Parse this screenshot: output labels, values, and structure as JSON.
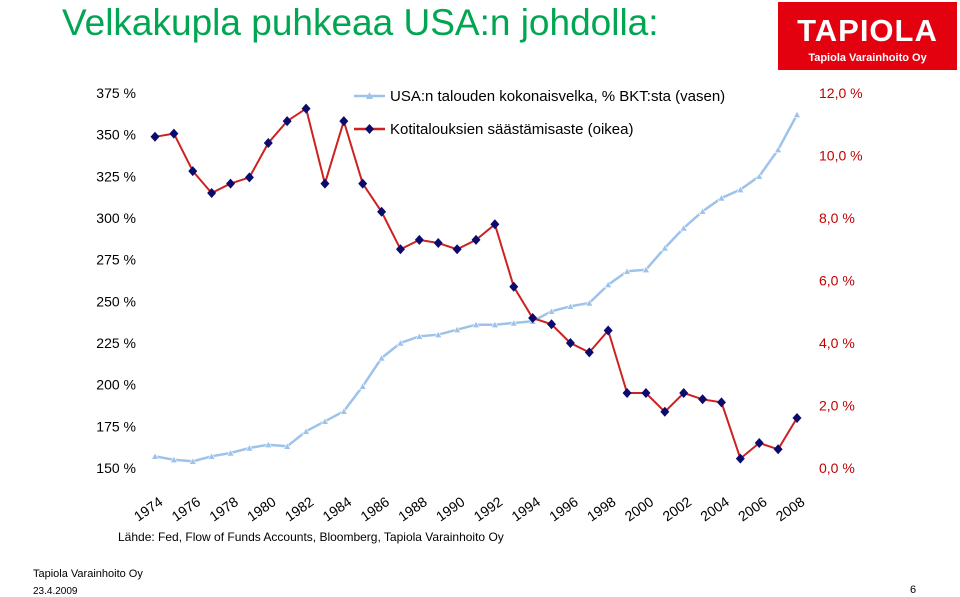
{
  "page": {
    "title": "Velkakupla puhkeaa USA:n johdolla:",
    "source": "Lähde: Fed, Flow of Funds Accounts, Bloomberg, Tapiola Varainhoito Oy",
    "footer_company": "Tapiola Varainhoito Oy",
    "footer_date": "23.4.2009",
    "page_number": "6"
  },
  "logo": {
    "word": "TAPIOLA",
    "subtitle": "Tapiola Varainhoito Oy",
    "background": "#e3000f"
  },
  "chart_data": {
    "type": "line",
    "title": "",
    "xlabel": "",
    "x_tick_labels": [
      "1974",
      "1976",
      "1978",
      "1980",
      "1982",
      "1984",
      "1986",
      "1988",
      "1990",
      "1992",
      "1994",
      "1996",
      "1998",
      "2000",
      "2002",
      "2004",
      "2006",
      "2008"
    ],
    "x": [
      1974,
      1975,
      1976,
      1977,
      1978,
      1979,
      1980,
      1981,
      1982,
      1983,
      1984,
      1985,
      1986,
      1987,
      1988,
      1989,
      1990,
      1991,
      1992,
      1993,
      1994,
      1995,
      1996,
      1997,
      1998,
      1999,
      2000,
      2001,
      2002,
      2003,
      2004,
      2005,
      2006,
      2007,
      2008
    ],
    "x_range": [
      1974,
      2008
    ],
    "left_axis": {
      "range": [
        150,
        375
      ],
      "tick_values": [
        150,
        175,
        200,
        225,
        250,
        275,
        300,
        325,
        350,
        375
      ],
      "tick_labels": [
        "150 %",
        "175 %",
        "200 %",
        "225 %",
        "250 %",
        "275 %",
        "300 %",
        "325 %",
        "350 %",
        "375 %"
      ]
    },
    "right_axis": {
      "range": [
        0,
        12
      ],
      "tick_values": [
        0,
        2,
        4,
        6,
        8,
        10,
        12
      ],
      "tick_labels": [
        "0,0 %",
        "2,0 %",
        "4,0 %",
        "6,0 %",
        "8,0 %",
        "10,0 %",
        "12,0 %"
      ],
      "label_color": "#c00000"
    },
    "grid": false,
    "legend_position": "top",
    "series": [
      {
        "name": "USA:n talouden kokonaisvelka, % BKT:sta (vasen)",
        "axis": "left",
        "color": "#9ec3ea",
        "marker": "triangle",
        "values": [
          157,
          155,
          154,
          157,
          159,
          162,
          164,
          163,
          172,
          178,
          184,
          199,
          216,
          225,
          229,
          230,
          233,
          236,
          236,
          237,
          238,
          244,
          247,
          249,
          260,
          268,
          269,
          282,
          294,
          304,
          312,
          317,
          325,
          341,
          362
        ]
      },
      {
        "name": "Kotitalouksien säästämisaste (oikea)",
        "axis": "right",
        "color": "#cc2222",
        "marker_color": "#0b0b6e",
        "marker": "diamond",
        "values": [
          10.6,
          10.7,
          9.5,
          8.8,
          9.1,
          9.3,
          10.4,
          11.1,
          11.5,
          9.1,
          11.1,
          9.1,
          8.2,
          7.0,
          7.3,
          7.2,
          7.0,
          7.3,
          7.8,
          5.8,
          4.8,
          4.6,
          4.0,
          3.7,
          4.4,
          2.4,
          2.4,
          1.8,
          2.4,
          2.2,
          2.1,
          0.3,
          0.8,
          0.6,
          1.6
        ]
      }
    ]
  }
}
